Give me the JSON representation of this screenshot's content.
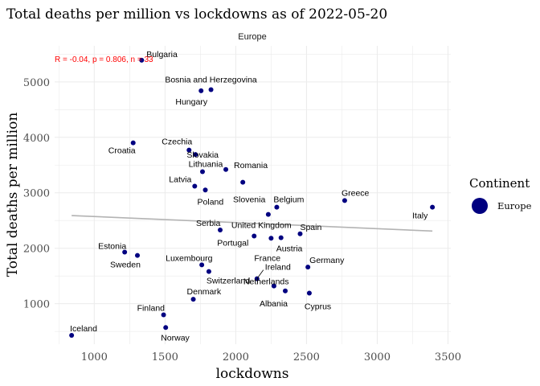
{
  "chart_data": {
    "type": "scatter",
    "title": "Total deaths per million vs lockdowns as of 2022-05-20",
    "facet_label": "Europe",
    "xlabel": "lockdowns",
    "ylabel": "Total deaths per million",
    "xlim": [
      720,
      3520
    ],
    "ylim": [
      270,
      5650
    ],
    "x_ticks": [
      1000,
      1500,
      2000,
      2500,
      3000,
      3500
    ],
    "y_ticks": [
      1000,
      2000,
      3000,
      4000,
      5000
    ],
    "grid": true,
    "stat_text": "R = -0.04, p = 0.806, n = 33",
    "colors": {
      "point": "#000080",
      "trend": "#b3b3b3",
      "stat": "#ff0000",
      "grid": "#ebebeb"
    },
    "trend_line": {
      "x": [
        840,
        3390
      ],
      "y": [
        2590,
        2310
      ]
    },
    "legend": {
      "title": "Continent",
      "items": [
        {
          "label": "Europe",
          "color": "#000080"
        }
      ],
      "position": "right"
    },
    "points": [
      {
        "label": "Bulgaria",
        "x": 1335,
        "y": 5390
      },
      {
        "label": "Bosnia and Herzegovina",
        "x": 1825,
        "y": 4860
      },
      {
        "label": "Hungary",
        "x": 1755,
        "y": 4840
      },
      {
        "label": "Croatia",
        "x": 1275,
        "y": 3900
      },
      {
        "label": "Czechia",
        "x": 1670,
        "y": 3770
      },
      {
        "label": "Slovakia",
        "x": 1715,
        "y": 3690
      },
      {
        "label": "Romania",
        "x": 1930,
        "y": 3420
      },
      {
        "label": "Latvia",
        "x": 1710,
        "y": 3120
      },
      {
        "label": "Lithuania",
        "x": 1765,
        "y": 3380
      },
      {
        "label": "Slovenia",
        "x": 2050,
        "y": 3190
      },
      {
        "label": "Poland",
        "x": 1785,
        "y": 3050
      },
      {
        "label": "Belgium",
        "x": 2290,
        "y": 2740
      },
      {
        "label": "Greece",
        "x": 2770,
        "y": 2860
      },
      {
        "label": "Italy",
        "x": 3390,
        "y": 2740
      },
      {
        "label": "Serbia",
        "x": 1890,
        "y": 2330
      },
      {
        "label": "United Kingdom",
        "x": 2230,
        "y": 2610
      },
      {
        "label": "Spain",
        "x": 2455,
        "y": 2260
      },
      {
        "label": "Portugal",
        "x": 2130,
        "y": 2220
      },
      {
        "label": "Austria",
        "x": 2320,
        "y": 2190
      },
      {
        "label": "France",
        "x": 2250,
        "y": 2180
      },
      {
        "label": "Estonia",
        "x": 1215,
        "y": 1930
      },
      {
        "label": "Sweden",
        "x": 1305,
        "y": 1870
      },
      {
        "label": "Luxembourg",
        "x": 1760,
        "y": 1700
      },
      {
        "label": "Germany",
        "x": 2510,
        "y": 1660
      },
      {
        "label": "Switzerland",
        "x": 1810,
        "y": 1580
      },
      {
        "label": "Ireland",
        "x": 2150,
        "y": 1450
      },
      {
        "label": "Netherlands",
        "x": 2270,
        "y": 1320
      },
      {
        "label": "Albania",
        "x": 2350,
        "y": 1230
      },
      {
        "label": "Cyprus",
        "x": 2520,
        "y": 1190
      },
      {
        "label": "Denmark",
        "x": 1700,
        "y": 1080
      },
      {
        "label": "Finland",
        "x": 1490,
        "y": 800
      },
      {
        "label": "Norway",
        "x": 1505,
        "y": 570
      },
      {
        "label": "Iceland",
        "x": 840,
        "y": 430
      }
    ]
  }
}
